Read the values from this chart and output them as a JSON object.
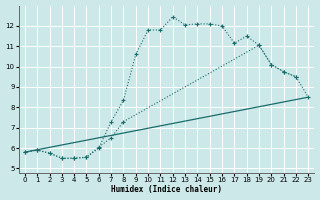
{
  "xlabel": "Humidex (Indice chaleur)",
  "xlim": [
    -0.5,
    23.5
  ],
  "ylim": [
    4.8,
    13.0
  ],
  "yticks": [
    5,
    6,
    7,
    8,
    9,
    10,
    11,
    12
  ],
  "xticks": [
    0,
    1,
    2,
    3,
    4,
    5,
    6,
    7,
    8,
    9,
    10,
    11,
    12,
    13,
    14,
    15,
    16,
    17,
    18,
    19,
    20,
    21,
    22,
    23
  ],
  "bg_color": "#cce8e8",
  "grid_color": "#ffffff",
  "line_color": "#1a6b6b",
  "series1_x": [
    0,
    1,
    2,
    3,
    4,
    5,
    6,
    7,
    8,
    9,
    10,
    11,
    12,
    13,
    14,
    15,
    16,
    17,
    18,
    19,
    20,
    21,
    22
  ],
  "series1_y": [
    5.8,
    5.9,
    5.75,
    5.5,
    5.5,
    5.55,
    6.0,
    7.3,
    8.35,
    10.6,
    11.8,
    11.8,
    12.45,
    12.05,
    12.1,
    12.1,
    12.0,
    11.15,
    11.5,
    11.05,
    10.1,
    9.75,
    9.5
  ],
  "series2_x": [
    0,
    1,
    2,
    3,
    4,
    5,
    6,
    7,
    8,
    19,
    20,
    21,
    22,
    23
  ],
  "series2_y": [
    5.8,
    5.9,
    5.75,
    5.5,
    5.5,
    5.55,
    6.05,
    6.5,
    7.3,
    11.05,
    10.1,
    9.75,
    9.5,
    8.5
  ],
  "series3_x": [
    0,
    23
  ],
  "series3_y": [
    5.8,
    8.5
  ]
}
